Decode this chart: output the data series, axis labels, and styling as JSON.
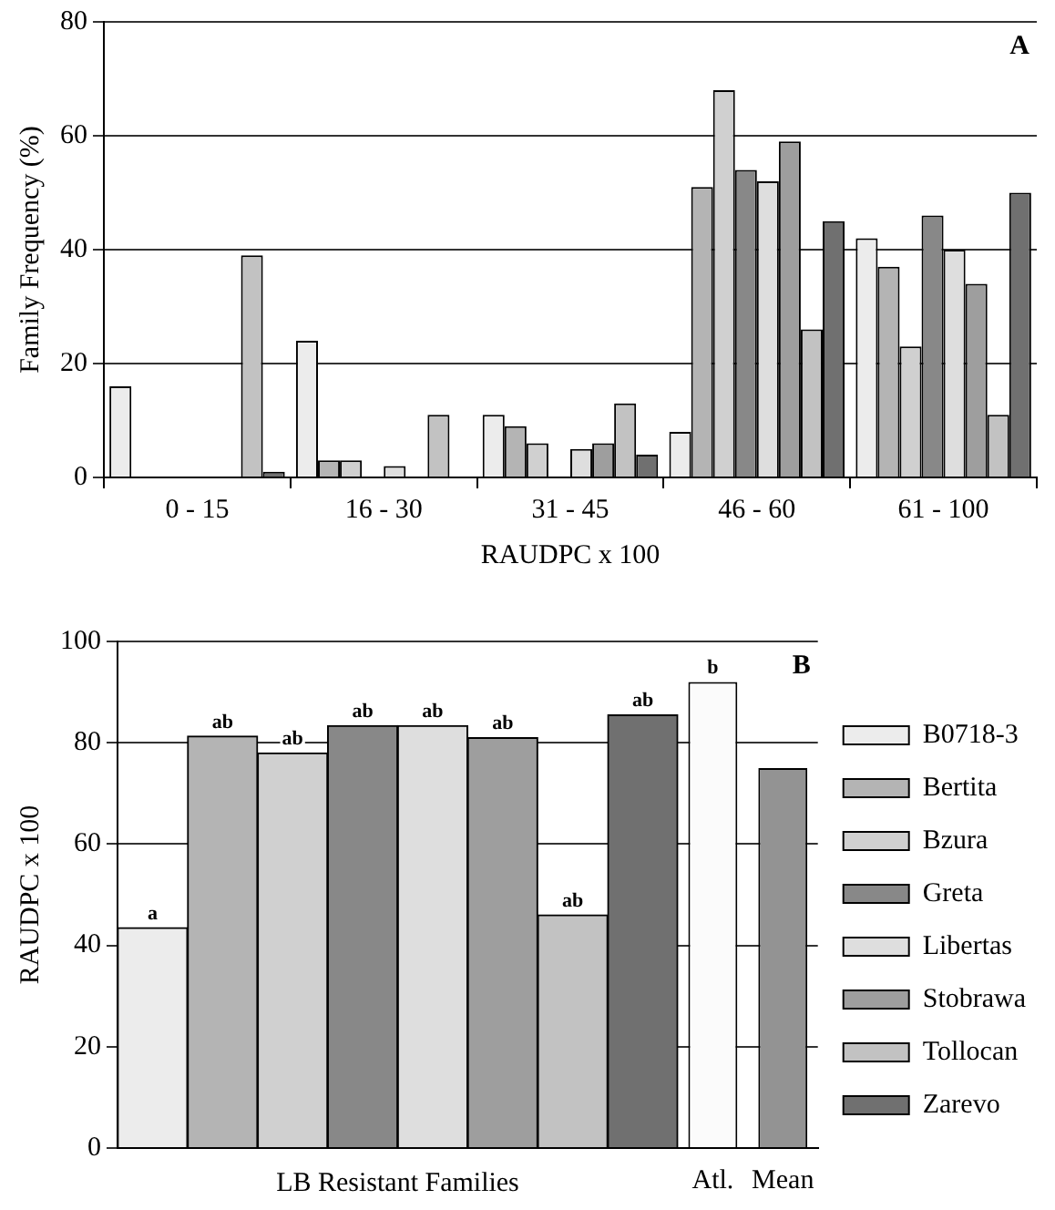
{
  "chart_data": [
    {
      "type": "bar",
      "xlabel": "RAUDPC x 100",
      "ylabel": "Family Frequency (%)",
      "categories": [
        "0 - 15",
        "16 - 30",
        "31 - 45",
        "46 - 60",
        "61 - 100"
      ],
      "ylim": [
        0,
        80
      ],
      "yticks": [
        0,
        20,
        40,
        60,
        80
      ],
      "grid": "y",
      "legend": false,
      "annotations": [
        "A"
      ],
      "series": [
        {
          "color": "#ececec",
          "values": [
            16,
            24,
            11,
            8,
            42
          ]
        },
        {
          "color": "#b4b4b4",
          "values": [
            0,
            3,
            9,
            51,
            37
          ]
        },
        {
          "color": "#d0d0d0",
          "values": [
            0,
            3,
            6,
            68,
            23
          ]
        },
        {
          "color": "#888888",
          "values": [
            0,
            0,
            0,
            54,
            46
          ]
        },
        {
          "color": "#dedede",
          "values": [
            0,
            2,
            5,
            52,
            40
          ]
        },
        {
          "color": "#9e9e9e",
          "values": [
            0,
            0,
            6,
            59,
            34
          ]
        },
        {
          "color": "#c2c2c2",
          "values": [
            39,
            11,
            13,
            26,
            11
          ]
        },
        {
          "color": "#707070",
          "values": [
            1,
            0,
            4,
            45,
            50
          ]
        }
      ]
    },
    {
      "type": "bar",
      "ylabel": "RAUDPC x 100",
      "categories": [
        null,
        null,
        null,
        null,
        null,
        null,
        null,
        null,
        "Atl.",
        "Mean"
      ],
      "ylim": [
        0,
        100
      ],
      "yticks": [
        0,
        20,
        40,
        60,
        80,
        100
      ],
      "grid": "y",
      "legend": "right",
      "annotations": [
        "B",
        "LB Resistant Families"
      ],
      "series": [
        {
          "name": "B0718-3",
          "color": "#ececec",
          "values": [
            43.5,
            null,
            null,
            null,
            null,
            null,
            null,
            null,
            null,
            null
          ],
          "value_labels": [
            "a",
            null,
            null,
            null,
            null,
            null,
            null,
            null,
            null,
            null
          ]
        },
        {
          "name": "Bertita",
          "color": "#b4b4b4",
          "values": [
            null,
            81.3,
            null,
            null,
            null,
            null,
            null,
            null,
            null,
            null
          ],
          "value_labels": [
            null,
            "ab",
            null,
            null,
            null,
            null,
            null,
            null,
            null,
            null
          ]
        },
        {
          "name": "Bzura",
          "color": "#d0d0d0",
          "values": [
            null,
            null,
            78,
            null,
            null,
            null,
            null,
            null,
            null,
            null
          ],
          "value_labels": [
            null,
            null,
            "ab",
            null,
            null,
            null,
            null,
            null,
            null,
            null
          ]
        },
        {
          "name": "Greta",
          "color": "#888888",
          "values": [
            null,
            null,
            null,
            83.4,
            null,
            null,
            null,
            null,
            null,
            null
          ],
          "value_labels": [
            null,
            null,
            null,
            "ab",
            null,
            null,
            null,
            null,
            null,
            null
          ]
        },
        {
          "name": "Libertas",
          "color": "#dedede",
          "values": [
            null,
            null,
            null,
            null,
            83.4,
            null,
            null,
            null,
            null,
            null
          ],
          "value_labels": [
            null,
            null,
            null,
            null,
            "ab",
            null,
            null,
            null,
            null,
            null
          ]
        },
        {
          "name": "Stobrawa",
          "color": "#9e9e9e",
          "values": [
            null,
            null,
            null,
            null,
            null,
            81,
            null,
            null,
            null,
            null
          ],
          "value_labels": [
            null,
            null,
            null,
            null,
            null,
            "ab",
            null,
            null,
            null,
            null
          ]
        },
        {
          "name": "Tollocan",
          "color": "#c2c2c2",
          "values": [
            null,
            null,
            null,
            null,
            null,
            null,
            46,
            null,
            null,
            null
          ],
          "value_labels": [
            null,
            null,
            null,
            null,
            null,
            null,
            "ab",
            null,
            null,
            null
          ]
        },
        {
          "name": "Zarevo",
          "color": "#707070",
          "values": [
            null,
            null,
            null,
            null,
            null,
            null,
            null,
            85.5,
            null,
            null
          ],
          "value_labels": [
            null,
            null,
            null,
            null,
            null,
            null,
            null,
            "ab",
            null,
            null
          ]
        },
        {
          "colors": [
            null,
            null,
            null,
            null,
            null,
            null,
            null,
            null,
            "#fbfbfb",
            "#939393"
          ],
          "values": [
            null,
            null,
            null,
            null,
            null,
            null,
            null,
            null,
            92,
            75
          ],
          "value_labels": [
            null,
            null,
            null,
            null,
            null,
            null,
            null,
            null,
            "b",
            null
          ]
        }
      ]
    }
  ]
}
